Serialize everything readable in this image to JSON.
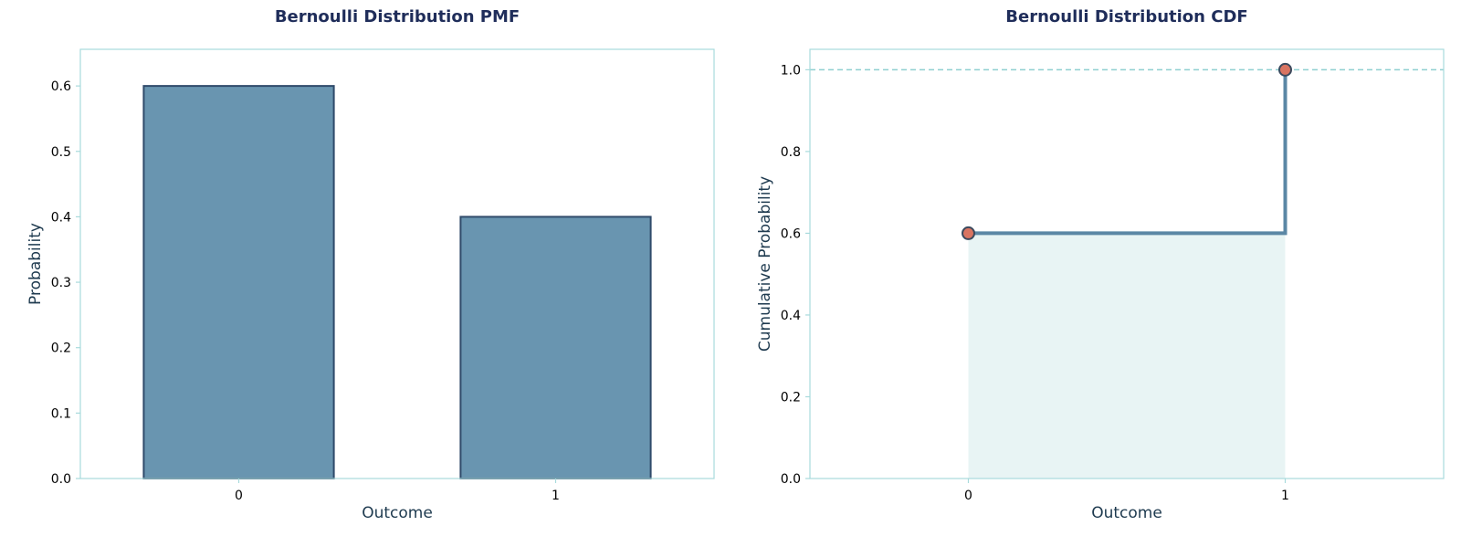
{
  "colors": {
    "title": "#1f2d5a",
    "axis_label": "#1e3a4f",
    "frame": "#a8dadc",
    "bar_fill": "#6995b0",
    "bar_edge": "#2f4a6a",
    "cdf_line": "#5b87a5",
    "cdf_fill": "#e8f4f4",
    "marker_fill": "#d97461",
    "marker_edge": "#3b4a5e",
    "ref_line": "#8fcfd0"
  },
  "chart_data": [
    {
      "type": "bar",
      "title": "Bernoulli Distribution PMF",
      "xlabel": "Outcome",
      "ylabel": "Probability",
      "categories": [
        "0",
        "1"
      ],
      "values": [
        0.6,
        0.4
      ],
      "ylim": [
        0,
        0.656
      ],
      "yticks": [
        "0.0",
        "0.1",
        "0.2",
        "0.3",
        "0.4",
        "0.5",
        "0.6"
      ],
      "grid": false
    },
    {
      "type": "line",
      "title": "Bernoulli Distribution CDF",
      "xlabel": "Outcome",
      "ylabel": "Cumulative Probability",
      "x": [
        0,
        1
      ],
      "y": [
        0.6,
        1.0
      ],
      "step": "post",
      "reference_line": 1.0,
      "xlim": [
        -0.5,
        1.5
      ],
      "ylim": [
        0,
        1.05
      ],
      "xticks": [
        "0",
        "1"
      ],
      "yticks": [
        "0.0",
        "0.2",
        "0.4",
        "0.6",
        "0.8",
        "1.0"
      ],
      "grid": false
    }
  ]
}
